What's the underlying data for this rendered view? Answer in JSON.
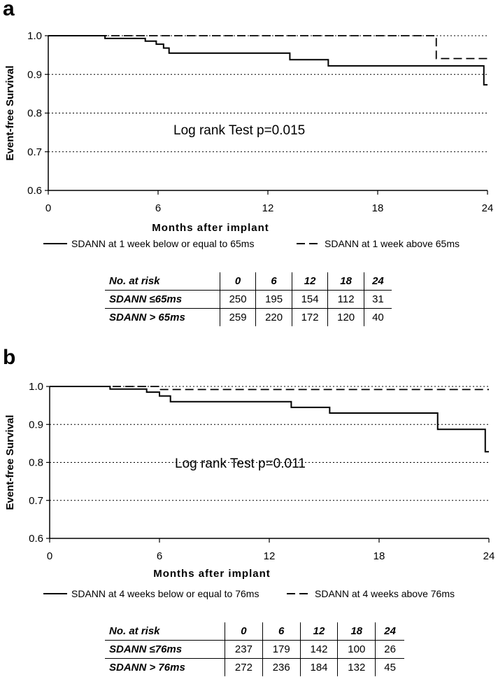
{
  "chart_data": [
    {
      "panel_label": "a",
      "type": "line",
      "step": true,
      "ylabel": "Event-free Survival",
      "xlabel": "Months after implant",
      "xlim": [
        0,
        24
      ],
      "ylim": [
        0.6,
        1.0
      ],
      "xticks": [
        "0",
        "6",
        "12",
        "18",
        "24"
      ],
      "yticks": [
        "0.6",
        "0.7",
        "0.8",
        "0.9",
        "1.0"
      ],
      "grid": "horizontal-dotted",
      "annotation": "Log rank Test p=0.015",
      "series": [
        {
          "name": "SDANN at 1 week below or equal to 65ms",
          "style": "solid",
          "x": [
            0,
            3.1,
            5.3,
            5.9,
            6.3,
            6.6,
            13.2,
            15.3,
            23.8,
            24.0
          ],
          "y": [
            1.0,
            0.993,
            0.986,
            0.978,
            0.968,
            0.955,
            0.938,
            0.922,
            0.873,
            0.873
          ]
        },
        {
          "name": "SDANN at 1 week above 65ms",
          "style": "dashed",
          "x": [
            0,
            21.2,
            24.0
          ],
          "y": [
            1.0,
            0.941,
            0.941
          ]
        }
      ],
      "risk_table": {
        "header": [
          "No. at risk",
          "0",
          "6",
          "12",
          "18",
          "24"
        ],
        "rows": [
          {
            "label": "SDANN ≤65ms",
            "values": [
              "250",
              "195",
              "154",
              "112",
              "31"
            ]
          },
          {
            "label": "SDANN > 65ms",
            "values": [
              "259",
              "220",
              "172",
              "120",
              "40"
            ]
          }
        ]
      }
    },
    {
      "panel_label": "b",
      "type": "line",
      "step": true,
      "ylabel": "Event-free Survival",
      "xlabel": "Months after implant",
      "xlim": [
        0,
        24
      ],
      "ylim": [
        0.6,
        1.0
      ],
      "xticks": [
        "0",
        "6",
        "12",
        "18",
        "24"
      ],
      "yticks": [
        "0.6",
        "0.7",
        "0.8",
        "0.9",
        "1.0"
      ],
      "grid": "horizontal-dotted",
      "annotation": "Log rank Test p=0.011",
      "series": [
        {
          "name": "SDANN at 4 weeks below or equal to 76ms",
          "style": "solid",
          "x": [
            0,
            3.3,
            5.3,
            6.0,
            6.6,
            13.2,
            15.3,
            21.2,
            23.8,
            24.0
          ],
          "y": [
            1.0,
            0.993,
            0.985,
            0.975,
            0.96,
            0.945,
            0.93,
            0.887,
            0.828,
            0.828
          ]
        },
        {
          "name": "SDANN at 4 weeks above 76ms",
          "style": "dashed",
          "x": [
            0,
            6.0,
            24.0
          ],
          "y": [
            1.0,
            0.992,
            0.992
          ]
        }
      ],
      "risk_table": {
        "header": [
          "No. at risk",
          "0",
          "6",
          "12",
          "18",
          "24"
        ],
        "rows": [
          {
            "label": "SDANN ≤76ms",
            "values": [
              "237",
              "179",
              "142",
              "100",
              "26"
            ]
          },
          {
            "label": "SDANN > 76ms",
            "values": [
              "272",
              "236",
              "184",
              "132",
              "45"
            ]
          }
        ]
      }
    }
  ]
}
